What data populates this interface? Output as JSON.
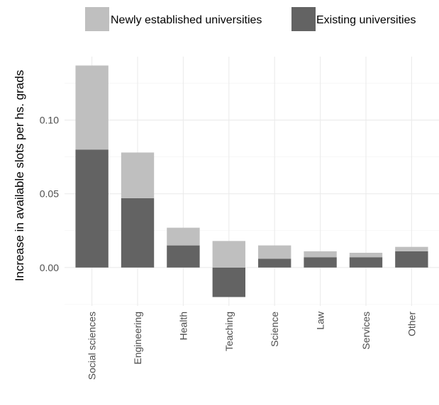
{
  "chart_data": {
    "type": "bar",
    "stacked": true,
    "categories": [
      "Social sciences",
      "Engineering",
      "Health",
      "Teaching",
      "Science",
      "Law",
      "Services",
      "Other"
    ],
    "series": [
      {
        "name": "Existing universities",
        "color": "#636363",
        "values": [
          0.08,
          0.047,
          0.015,
          -0.02,
          0.006,
          0.007,
          0.007,
          0.011
        ]
      },
      {
        "name": "Newly established universities",
        "color": "#bfbfbf",
        "values": [
          0.057,
          0.031,
          0.012,
          0.018,
          0.009,
          0.004,
          0.003,
          0.003
        ]
      }
    ],
    "legend_order": [
      "Newly established universities",
      "Existing universities"
    ],
    "legend_position": "top",
    "xlabel": "",
    "ylabel": "Increase in available slots per hs. grads",
    "ylim": [
      -0.026,
      0.143
    ],
    "yticks": [
      0.0,
      0.05,
      0.1
    ],
    "ytick_labels": [
      "0.00",
      "0.05",
      "0.10"
    ],
    "grid": true
  }
}
